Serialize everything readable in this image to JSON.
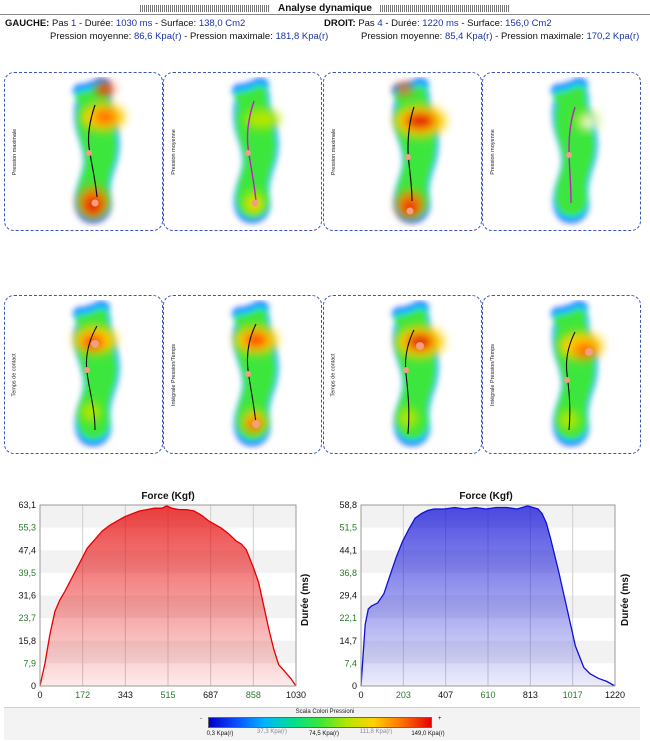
{
  "title": "Analyse dynamique",
  "left": {
    "side_label": "GAUCHE:",
    "pas_label": "Pas",
    "pas_value": "1",
    "duree_label": "Durée:",
    "duree_value": "1030 ms",
    "surface_label": "Surface:",
    "surface_value": "138,0 Cm2",
    "pmoy_label": "Pression moyenne:",
    "pmoy_value": "86,6 Kpa(r)",
    "pmax_label": "Pression maximale:",
    "pmax_value": "181,8 Kpa(r)"
  },
  "right": {
    "side_label": "DROIT:",
    "pas_label": "Pas",
    "pas_value": "4",
    "duree_label": "Durée:",
    "duree_value": "1220 ms",
    "surface_label": "Surface:",
    "surface_value": "156,0 Cm2",
    "pmoy_label": "Pression moyenne:",
    "pmoy_value": "85,4 Kpa(r)",
    "pmax_label": "Pression maximale:",
    "pmax_value": "170,2 Kpa(r)"
  },
  "panels_row1": [
    {
      "label": "Pression maximale"
    },
    {
      "label": "Pression moyenne"
    },
    {
      "label": "Pression maximale"
    },
    {
      "label": "Pression moyenne"
    }
  ],
  "panels_row2": [
    {
      "label": "Temps de contact"
    },
    {
      "label": "Intégrale Pression/Temps"
    },
    {
      "label": "Temps de contact"
    },
    {
      "label": "Intégrale Pression/Temps"
    }
  ],
  "colors": {
    "left_curve": "#e60000",
    "right_curve": "#1010d8",
    "panel_border": "#3a56b5",
    "value_text": "#1a33a8"
  },
  "chart_data": [
    {
      "type": "area",
      "title": "Force (Kgf)",
      "ylabel": "Durée (ms)",
      "xlabel": "",
      "xlim": [
        0,
        1030
      ],
      "ylim": [
        0,
        63.1
      ],
      "x_ticks": [
        "0",
        "172",
        "343",
        "515",
        "687",
        "858",
        "1030"
      ],
      "y_ticks": [
        "63,1",
        "55,3",
        "47,4",
        "39,5",
        "31,6",
        "23,7",
        "15,8",
        "7,9",
        "0"
      ],
      "x": [
        0,
        20,
        40,
        60,
        80,
        100,
        130,
        160,
        190,
        220,
        250,
        280,
        310,
        340,
        370,
        400,
        430,
        460,
        490,
        510,
        530,
        560,
        590,
        620,
        650,
        680,
        700,
        730,
        760,
        790,
        810,
        830,
        860,
        880,
        900,
        920,
        940,
        960,
        990,
        1010,
        1030
      ],
      "series": [
        {
          "values": [
            0,
            8,
            18,
            26,
            30,
            33,
            38,
            43,
            48,
            51,
            54,
            56,
            57.5,
            59,
            60,
            61,
            61.5,
            62,
            62,
            62.8,
            62,
            61.5,
            61.5,
            61,
            59.5,
            57.5,
            56.5,
            55,
            53,
            50.5,
            49.5,
            47.5,
            41,
            36,
            28,
            20,
            13,
            7.5,
            4.5,
            2.5,
            0
          ]
        }
      ]
    },
    {
      "type": "area",
      "title": "Force (Kgf)",
      "ylabel": "Durée (ms)",
      "xlabel": "",
      "xlim": [
        0,
        1220
      ],
      "ylim": [
        0,
        58.8
      ],
      "x_ticks": [
        "0",
        "203",
        "407",
        "610",
        "813",
        "1017",
        "1220"
      ],
      "y_ticks": [
        "58,8",
        "51,5",
        "44,1",
        "36,8",
        "29,4",
        "22,1",
        "14,7",
        "7,4",
        "0"
      ],
      "x": [
        0,
        10,
        20,
        35,
        50,
        80,
        110,
        140,
        170,
        200,
        230,
        260,
        290,
        320,
        350,
        400,
        450,
        500,
        550,
        600,
        650,
        700,
        750,
        800,
        850,
        870,
        890,
        910,
        950,
        990,
        1030,
        1070,
        1100,
        1140,
        1180,
        1220
      ],
      "series": [
        {
          "values": [
            0,
            10,
            20,
            25,
            26,
            27,
            30,
            36,
            42,
            47,
            51,
            54.5,
            56,
            57,
            57.5,
            57.5,
            58,
            57.5,
            58,
            57.5,
            58,
            58,
            57.5,
            58.5,
            57.5,
            56,
            53,
            48,
            37,
            25,
            13,
            6,
            4,
            2.5,
            1.5,
            0
          ]
        }
      ]
    }
  ],
  "legend": {
    "title": "Scala Colori Pressioni",
    "minus": "-",
    "plus": "+",
    "ticks": [
      "0,3 Kpa(r)",
      "37,3 Kpa(r)",
      "74,5 Kpa(r)",
      "111,8 Kpa(r)",
      "149,0 Kpa(r)"
    ]
  }
}
